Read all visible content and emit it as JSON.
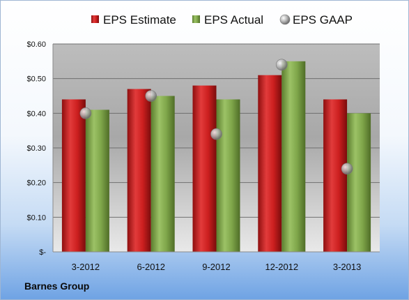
{
  "company": "Barnes Group",
  "chart_data": {
    "type": "bar",
    "categories": [
      "3-2012",
      "6-2012",
      "9-2012",
      "12-2012",
      "3-2013"
    ],
    "series": [
      {
        "name": "EPS Estimate",
        "kind": "bar",
        "color": "#cc1f1f",
        "values": [
          0.44,
          0.47,
          0.48,
          0.51,
          0.44
        ]
      },
      {
        "name": "EPS Actual",
        "kind": "bar",
        "color": "#7fa64a",
        "values": [
          0.41,
          0.45,
          0.44,
          0.55,
          0.4
        ]
      },
      {
        "name": "EPS GAAP",
        "kind": "marker",
        "color": "#a9a9a9",
        "values": [
          0.4,
          0.45,
          0.34,
          0.54,
          0.24
        ]
      }
    ],
    "ylim": [
      0,
      0.6
    ],
    "yticks": [
      0,
      0.1,
      0.2,
      0.3,
      0.4,
      0.5,
      0.6
    ],
    "ytick_labels": [
      "$-",
      "$0.10",
      "$0.20",
      "$0.30",
      "$0.40",
      "$0.50",
      "$0.60"
    ],
    "grid": true,
    "legend_position": "top"
  }
}
